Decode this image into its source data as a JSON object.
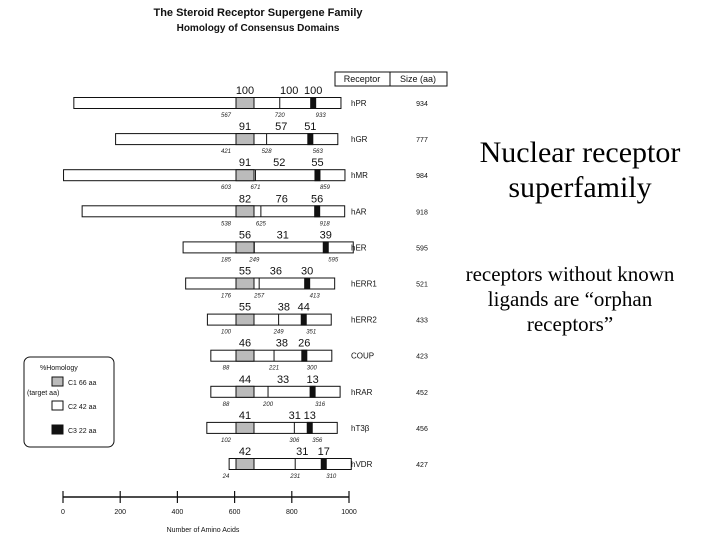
{
  "diagram": {
    "title": "The Steroid Receptor Supergene Family",
    "subtitle": "Homology of Consensus Domains",
    "table_headers": {
      "receptor": "Receptor",
      "size": "Size (aa)"
    },
    "receptors": [
      {
        "name": "hPR",
        "size": "934",
        "length": 934,
        "c1_start": 567,
        "c2_start": 720,
        "c2_end": 933,
        "homology": [
          "100",
          "100",
          "100"
        ],
        "positions": [
          "567",
          "720",
          "933"
        ]
      },
      {
        "name": "hGR",
        "size": "777",
        "length": 777,
        "c1_start": 421,
        "c2_start": 528,
        "c2_end": 777,
        "homology": [
          "91",
          "57",
          "51"
        ],
        "positions": [
          "421",
          "528",
          "563"
        ]
      },
      {
        "name": "hMR",
        "size": "984",
        "length": 984,
        "c1_start": 603,
        "c2_start": 671,
        "c2_end": 984,
        "homology": [
          "91",
          "52",
          "55"
        ],
        "positions": [
          "603",
          "671",
          "859"
        ]
      },
      {
        "name": "hAR",
        "size": "918",
        "length": 918,
        "c1_start": 538,
        "c2_start": 625,
        "c2_end": 918,
        "homology": [
          "82",
          "76",
          "56"
        ],
        "positions": [
          "538",
          "625",
          "918"
        ]
      },
      {
        "name": "hER",
        "size": "595",
        "length": 595,
        "c1_start": 185,
        "c2_start": 249,
        "c2_end": 595,
        "homology": [
          "56",
          "31",
          "39"
        ],
        "positions": [
          "185",
          "249",
          "595"
        ]
      },
      {
        "name": "hERR1",
        "size": "521",
        "length": 521,
        "c1_start": 176,
        "c2_start": 257,
        "c2_end": 521,
        "homology": [
          "55",
          "36",
          "30"
        ],
        "positions": [
          "176",
          "257",
          "413"
        ]
      },
      {
        "name": "hERR2",
        "size": "433",
        "length": 433,
        "c1_start": 100,
        "c2_start": 249,
        "c2_end": 433,
        "homology": [
          "55",
          "38",
          "44"
        ],
        "positions": [
          "100",
          "249",
          "351"
        ]
      },
      {
        "name": "COUP",
        "size": "423",
        "length": 423,
        "c1_start": 88,
        "c2_start": 221,
        "c2_end": 423,
        "homology": [
          "46",
          "38",
          "26"
        ],
        "positions": [
          "88",
          "221",
          "300"
        ]
      },
      {
        "name": "hRAR",
        "size": "452",
        "length": 452,
        "c1_start": 88,
        "c2_start": 200,
        "c2_end": 452,
        "homology": [
          "44",
          "33",
          "13"
        ],
        "positions": [
          "88",
          "200",
          "316"
        ]
      },
      {
        "name": "hT3β",
        "size": "456",
        "length": 456,
        "c1_start": 102,
        "c2_start": 306,
        "c2_end": 456,
        "homology": [
          "41",
          "31",
          "13"
        ],
        "positions": [
          "102",
          "306",
          "356"
        ]
      },
      {
        "name": "hVDR",
        "size": "427",
        "length": 427,
        "c1_start": 24,
        "c2_start": 231,
        "c2_end": 427,
        "homology": [
          "42",
          "31",
          "17"
        ],
        "positions": [
          "24",
          "231",
          "310"
        ]
      }
    ],
    "legend": {
      "title": "%Homology",
      "note": "(target aa)",
      "items": [
        {
          "label": "C1 66 aa",
          "fill": "#bbbbbb"
        },
        {
          "label": "C2 42 aa",
          "fill": "#ffffff"
        },
        {
          "label": "C3 22 aa",
          "fill": "#111111"
        }
      ]
    },
    "axis": {
      "ticks": [
        "0",
        "200",
        "400",
        "600",
        "800",
        "1000"
      ],
      "label": "Number of Amino Acids"
    }
  },
  "side_text": {
    "title": "Nuclear receptor superfamily",
    "note": "receptors without known ligands are “orphan receptors”"
  }
}
